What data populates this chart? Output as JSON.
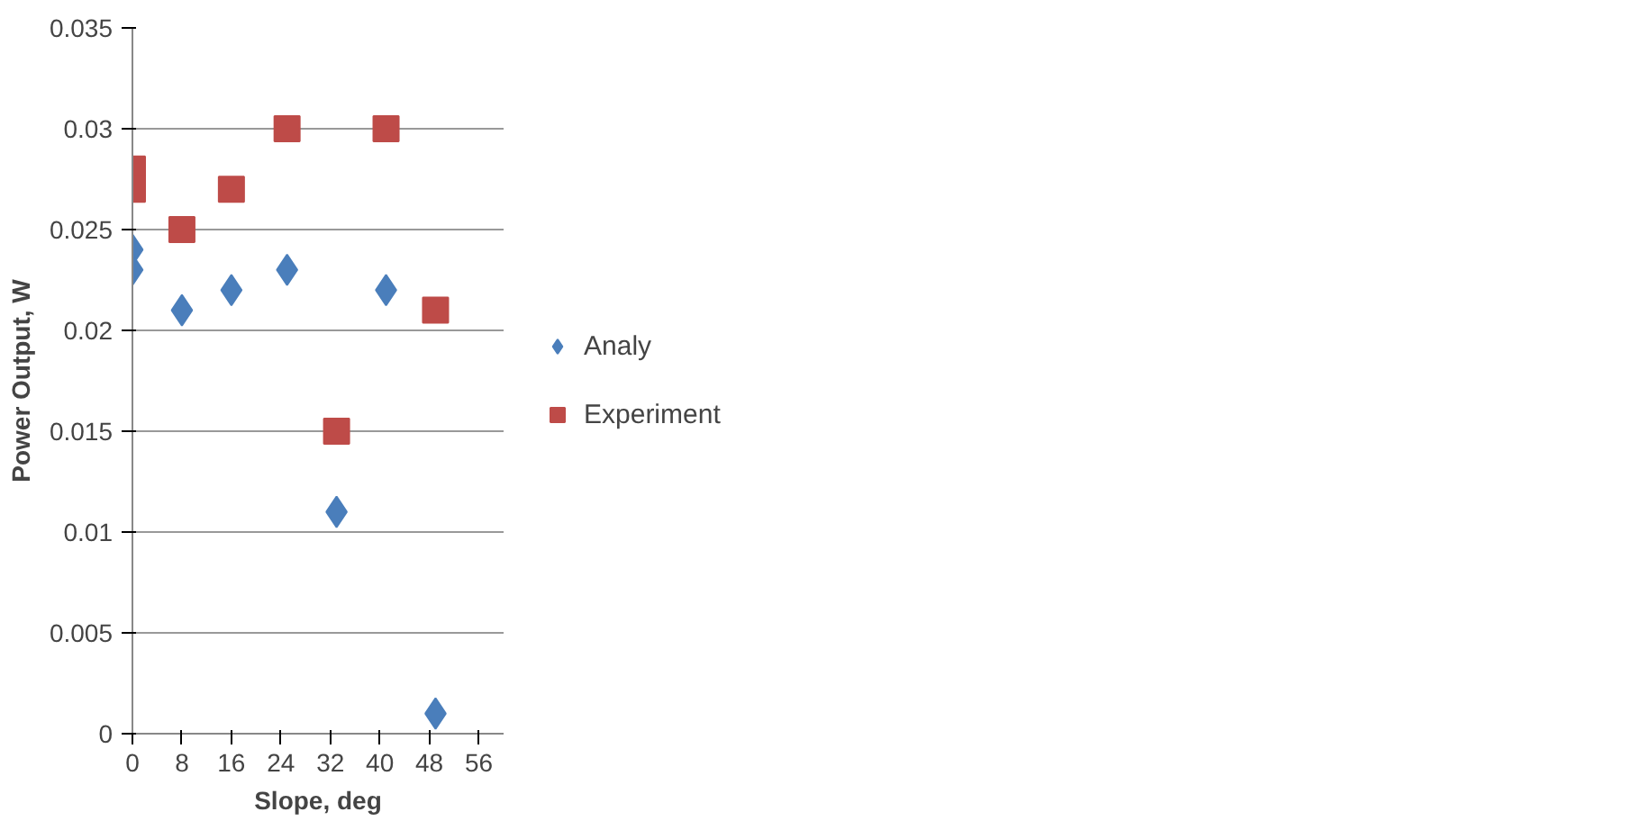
{
  "chart_data": {
    "type": "scatter",
    "xlabel": "Slope, deg",
    "ylabel": "Power Output, W",
    "xlim": [
      0,
      60
    ],
    "xticks": [
      0,
      8,
      16,
      24,
      32,
      40,
      48,
      56
    ],
    "ylim": [
      0,
      0.035
    ],
    "yticks": [
      0,
      0.005,
      0.01,
      0.015,
      0.02,
      0.025,
      0.03,
      0.035
    ],
    "grid": "y",
    "legend": "right",
    "series": [
      {
        "name": "Analy",
        "color": "#4a7ebb",
        "marker": "diamond",
        "x": [
          0,
          0,
          8,
          16,
          25,
          33,
          41,
          49
        ],
        "values": [
          0.024,
          0.023,
          0.021,
          0.022,
          0.023,
          0.011,
          0.022,
          0.001
        ]
      },
      {
        "name": "Experiment",
        "color": "#be4b48",
        "marker": "square",
        "x": [
          0,
          0,
          8,
          16,
          25,
          33,
          41,
          49
        ],
        "values": [
          0.028,
          0.027,
          0.025,
          0.027,
          0.03,
          0.015,
          0.03,
          0.021
        ]
      }
    ]
  }
}
